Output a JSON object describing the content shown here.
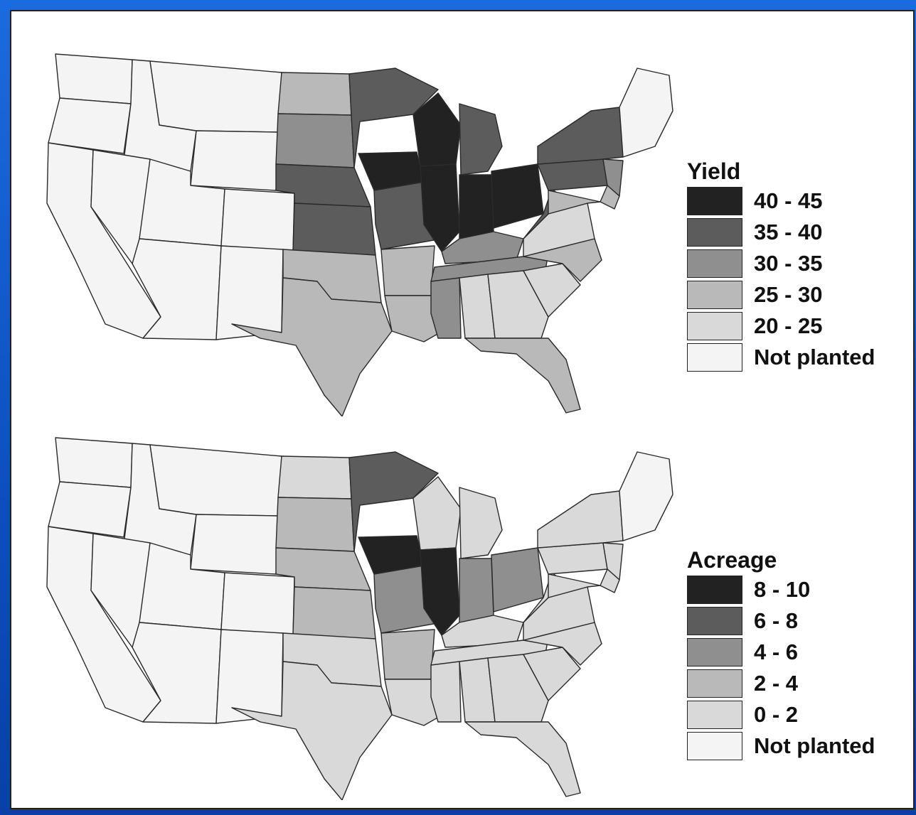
{
  "colors": {
    "c0": "#f4f4f4",
    "c1": "#d9d9d9",
    "c2": "#b9b9b9",
    "c3": "#8f8f8f",
    "c4": "#5c5c5c",
    "c5": "#222222"
  },
  "maps": [
    {
      "legend_title": "Yield",
      "legend": [
        {
          "label": "40 - 45",
          "color": "c5"
        },
        {
          "label": "35 - 40",
          "color": "c4"
        },
        {
          "label": "30 - 35",
          "color": "c3"
        },
        {
          "label": "25 - 30",
          "color": "c2"
        },
        {
          "label": "20 - 25",
          "color": "c1"
        },
        {
          "label": "Not planted",
          "color": "c0"
        }
      ],
      "states": {
        "WA": "c0",
        "OR": "c0",
        "CA": "c0",
        "ID": "c0",
        "NV": "c0",
        "MT": "c0",
        "WY": "c0",
        "UT": "c0",
        "AZ": "c0",
        "CO": "c0",
        "NM": "c0",
        "ND": "c2",
        "SD": "c3",
        "NE": "c4",
        "KS": "c4",
        "OK": "c2",
        "TX": "c2",
        "MN": "c4",
        "IA": "c5",
        "MO": "c4",
        "AR": "c2",
        "LA": "c2",
        "WI": "c5",
        "IL": "c5",
        "MI": "c4",
        "IN": "c5",
        "OH": "c5",
        "KY": "c3",
        "TN": "c3",
        "MS": "c3",
        "AL": "c1",
        "GA": "c1",
        "FL": "c2",
        "SC": "c1",
        "NC": "c2",
        "VA": "c1",
        "WV": "c4",
        "PA": "c4",
        "NY": "c4",
        "NJ": "c3",
        "DE": "c2",
        "MD": "c2",
        "NE_states": "c0"
      }
    },
    {
      "legend_title": "Acreage",
      "legend": [
        {
          "label": "8 - 10",
          "color": "c5"
        },
        {
          "label": "6 - 8",
          "color": "c4"
        },
        {
          "label": "4 - 6",
          "color": "c3"
        },
        {
          "label": "2 - 4",
          "color": "c2"
        },
        {
          "label": "0 - 2",
          "color": "c1"
        },
        {
          "label": "Not planted",
          "color": "c0"
        }
      ],
      "states": {
        "WA": "c0",
        "OR": "c0",
        "CA": "c0",
        "ID": "c0",
        "NV": "c0",
        "MT": "c0",
        "WY": "c0",
        "UT": "c0",
        "AZ": "c0",
        "CO": "c0",
        "NM": "c0",
        "ND": "c1",
        "SD": "c2",
        "NE": "c2",
        "KS": "c2",
        "OK": "c1",
        "TX": "c1",
        "MN": "c4",
        "IA": "c5",
        "MO": "c3",
        "AR": "c2",
        "LA": "c1",
        "WI": "c1",
        "IL": "c5",
        "MI": "c1",
        "IN": "c3",
        "OH": "c3",
        "KY": "c1",
        "TN": "c1",
        "MS": "c1",
        "AL": "c1",
        "GA": "c1",
        "FL": "c1",
        "SC": "c1",
        "NC": "c1",
        "VA": "c1",
        "WV": "c1",
        "PA": "c1",
        "NY": "c1",
        "NJ": "c1",
        "DE": "c1",
        "MD": "c1",
        "NE_states": "c0"
      }
    }
  ]
}
